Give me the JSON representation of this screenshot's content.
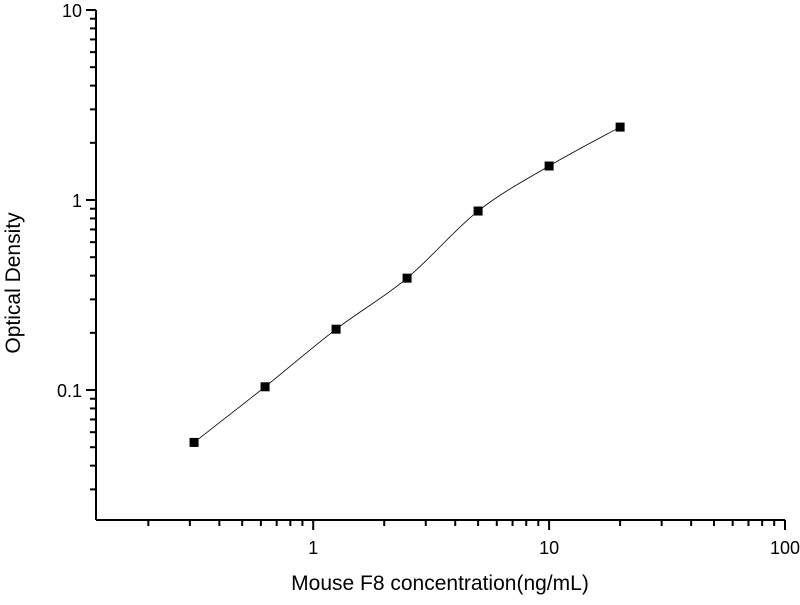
{
  "chart_data": {
    "type": "scatter",
    "title": "",
    "xlabel": "Mouse F8 concentration(ng/mL)",
    "ylabel": "Optical Density",
    "x_scale": "log",
    "y_scale": "log",
    "xlim": [
      0.12,
      100
    ],
    "ylim": [
      0.0207,
      10
    ],
    "x_ticks": [
      {
        "value": 1,
        "label": "1"
      },
      {
        "value": 10,
        "label": "10"
      },
      {
        "value": 100,
        "label": "100"
      }
    ],
    "y_ticks": [
      {
        "value": 0.1,
        "label": "0.1"
      },
      {
        "value": 1,
        "label": "1"
      },
      {
        "value": 10,
        "label": "10"
      }
    ],
    "grid": false,
    "legend": "none",
    "marker": "square",
    "color": "#000000",
    "fit_curve": true,
    "series": [
      {
        "x": [
          0.3125,
          0.625,
          1.25,
          2.5,
          5,
          10,
          20
        ],
        "y": [
          0.053,
          0.104,
          0.209,
          0.388,
          0.875,
          1.51,
          2.42
        ]
      }
    ]
  }
}
